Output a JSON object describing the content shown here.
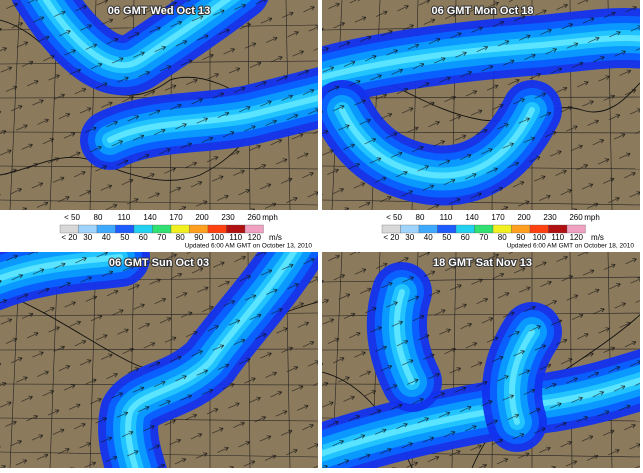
{
  "panels": [
    {
      "title": "06 GMT Wed Oct 13"
    },
    {
      "title": "06 GMT Mon Oct 18"
    },
    {
      "title": "06 GMT Sun Oct 03"
    },
    {
      "title": "18 GMT Sat Nov 13"
    }
  ],
  "legends": [
    {
      "mph": [
        "< 50",
        "80",
        "110",
        "140",
        "170",
        "200",
        "230",
        "260",
        "mph"
      ],
      "ms": [
        "< 20",
        "30",
        "40",
        "50",
        "60",
        "70",
        "80",
        "90",
        "100",
        "110",
        "120",
        "m/s"
      ],
      "updated": "Updated 6:00 AM GMT on October 13, 2010"
    },
    {
      "mph": [
        "< 50",
        "80",
        "110",
        "140",
        "170",
        "200",
        "230",
        "260",
        "mph"
      ],
      "ms": [
        "< 20",
        "30",
        "40",
        "50",
        "60",
        "70",
        "80",
        "90",
        "100",
        "110",
        "120",
        "m/s"
      ],
      "updated": "Updated 6:00 AM GMT on October 18, 2010"
    }
  ]
}
